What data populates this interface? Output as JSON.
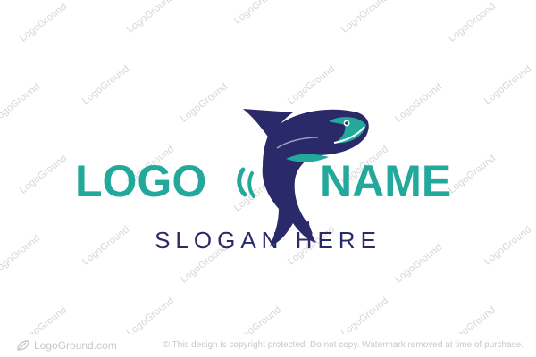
{
  "logo": {
    "word_left": "LOGO",
    "word_right": "NAME",
    "slogan": "SLOGAN HERE"
  },
  "watermark": {
    "text": "LogoGround"
  },
  "footer": {
    "brand": "LogoGround.com",
    "note": "© This design is copyright protected. Do not copy. Watermark removed at time of purchase."
  },
  "colors": {
    "teal": "#22a99c",
    "navy": "#2a2a6b",
    "watermark": "#d6d6d6",
    "background": "#ffffff"
  },
  "icons": {
    "fish": "leaping-fish-icon",
    "brand": "logoground-leaf-icon"
  }
}
